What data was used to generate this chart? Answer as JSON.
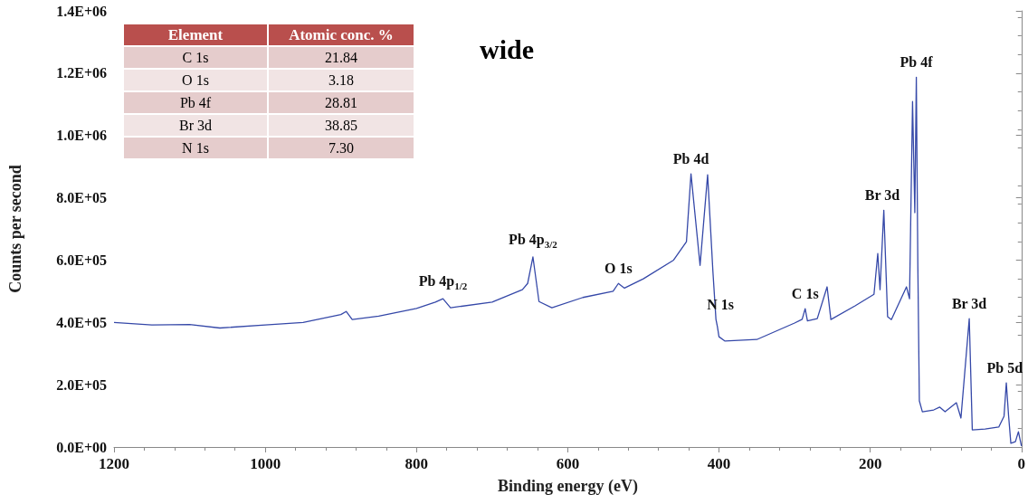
{
  "chart_data": {
    "type": "line",
    "title": "wide",
    "xlabel": "Binding energy (eV)",
    "ylabel": "Counts per second",
    "x": [
      1200,
      1150,
      1100,
      1060,
      1000,
      950,
      900,
      893,
      885,
      850,
      800,
      775,
      765,
      755,
      700,
      660,
      653,
      646,
      638,
      621,
      580,
      540,
      533,
      525,
      500,
      460,
      443,
      437,
      425,
      415,
      408,
      404,
      402,
      400,
      392,
      350,
      300,
      290,
      286,
      283,
      270,
      257,
      252,
      220,
      195,
      190,
      187,
      182,
      177,
      172,
      152,
      148,
      144,
      141,
      139,
      137,
      135,
      131,
      116,
      108,
      101,
      86,
      80,
      69,
      65,
      48,
      30,
      23,
      20,
      17,
      14,
      8,
      4,
      0
    ],
    "series": [
      {
        "color": "#3548a8",
        "values": [
          400000,
          392000,
          393000,
          382000,
          392000,
          400000,
          425000,
          435000,
          409000,
          420000,
          445000,
          465000,
          476000,
          447000,
          465000,
          505000,
          525000,
          610000,
          467000,
          447000,
          480000,
          500000,
          525000,
          510000,
          540000,
          600000,
          659000,
          877000,
          583000,
          874000,
          563000,
          410000,
          385000,
          354000,
          340000,
          345000,
          398000,
          410000,
          444000,
          405000,
          412000,
          514000,
          409000,
          453000,
          490000,
          621000,
          505000,
          760000,
          418000,
          409000,
          514000,
          476000,
          1109000,
          752000,
          1187000,
          583000,
          148000,
          113000,
          119000,
          128000,
          113000,
          142000,
          93000,
          412000,
          55000,
          58000,
          64000,
          99000,
          206000,
          100000,
          12000,
          17000,
          49000,
          3000
        ]
      }
    ],
    "xlim": [
      1200,
      0
    ],
    "xticks": [
      0,
      200,
      400,
      600,
      800,
      1000,
      1200
    ],
    "ylim": [
      0,
      1400000
    ],
    "yticks": [
      {
        "value": 0,
        "label": "0.0E+00"
      },
      {
        "value": 200000,
        "label": "2.0E+05"
      },
      {
        "value": 400000,
        "label": "4.0E+05"
      },
      {
        "value": 600000,
        "label": "6.0E+05"
      },
      {
        "value": 800000,
        "label": "8.0E+05"
      },
      {
        "value": 1000000,
        "label": "1.0E+06"
      },
      {
        "value": 1200000,
        "label": "1.2E+06"
      },
      {
        "value": 1400000,
        "label": "1.4E+06"
      }
    ],
    "grid": false,
    "marker": "none",
    "line_style": "solid",
    "annotations": [
      "Element",
      "Atomic conc. %",
      "C 1s",
      "21.84",
      "O 1s",
      "3.18",
      "Pb 4f",
      "28.81",
      "Br 3d",
      "38.85",
      "N 1s",
      "7.30",
      {
        "text": "Pb 4p$_{1/2}$",
        "x": 765,
        "y": 476000
      },
      {
        "text": "Pb 4p$_{3/2}$",
        "x": 646,
        "y": 610000
      },
      {
        "text": "O 1s",
        "x": 533,
        "y": 525000
      },
      {
        "text": "Pb 4d",
        "x": 437,
        "y": 877000
      },
      {
        "text": "N 1s",
        "x": 398,
        "y": 410000
      },
      {
        "text": "C 1s",
        "x": 286,
        "y": 444000
      },
      {
        "text": "Br 3d",
        "x": 184,
        "y": 760000
      },
      {
        "text": "Pb 4f",
        "x": 139,
        "y": 1187000
      },
      {
        "text": "Br 3d",
        "x": 69,
        "y": 412000
      },
      {
        "text": "Pb 5d",
        "x": 22,
        "y": 206000
      }
    ]
  }
}
